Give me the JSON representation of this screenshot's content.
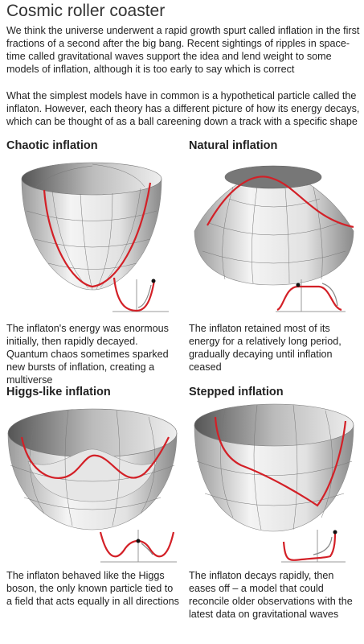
{
  "header": {
    "title": "Cosmic roller coaster",
    "intro": "We think the universe underwent a rapid growth spurt called inflation in the first fractions of a second after the big bang. Recent sightings of ripples in space-time called gravitational waves support the idea and lend weight to some models of inflation, although it is too early to say which is correct",
    "lead": "What the simplest models have in common is a hypothetical particle called the inflaton. However, each theory has a different picture of how its energy decays, which can be thought of as a ball careening down a track with a specific shape"
  },
  "panels": [
    {
      "title": "Chaotic inflation",
      "text": "The inflaton's energy was enormous initially, then rapidly decayed. Quantum chaos sometimes sparked new bursts of inflation, creating a multiverse"
    },
    {
      "title": "Natural inflation",
      "text": "The inflaton retained most of its energy for a relatively long period, gradually decaying until inflation ceased"
    },
    {
      "title": "Higgs-like inflation",
      "text": "The inflaton behaved like the Higgs boson, the only known particle tied to a field that acts equally in all directions"
    },
    {
      "title": "Stepped inflation",
      "text": "The inflaton decays rapidly, then eases off – a model that could reconcile older observations with the latest data on gravitational waves"
    }
  ]
}
